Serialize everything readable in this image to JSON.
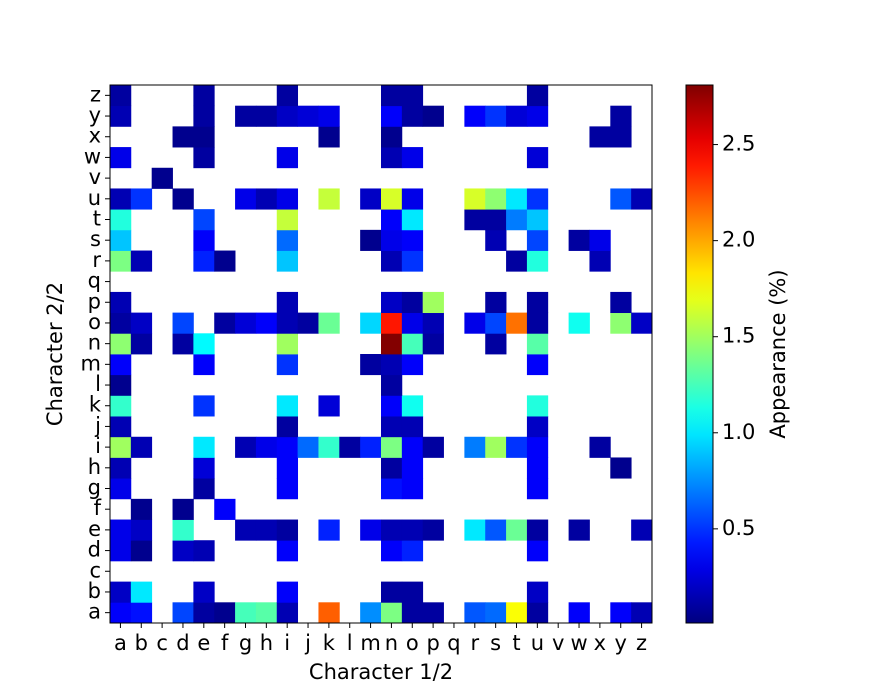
{
  "chart_data": {
    "type": "heatmap",
    "xlabel": "Character 1/2",
    "ylabel": "Character 2/2",
    "colorbar_label": "Appearance (%)",
    "colormap": "jet",
    "x": [
      "a",
      "b",
      "c",
      "d",
      "e",
      "f",
      "g",
      "h",
      "i",
      "j",
      "k",
      "l",
      "m",
      "n",
      "o",
      "p",
      "q",
      "r",
      "s",
      "t",
      "u",
      "v",
      "w",
      "x",
      "y",
      "z"
    ],
    "y": [
      "a",
      "b",
      "c",
      "d",
      "e",
      "f",
      "g",
      "h",
      "i",
      "j",
      "k",
      "l",
      "m",
      "n",
      "o",
      "p",
      "q",
      "r",
      "s",
      "t",
      "u",
      "v",
      "w",
      "x",
      "y",
      "z"
    ],
    "values": [
      [
        0.35,
        0.4,
        null,
        0.55,
        0.1,
        0.05,
        1.25,
        1.3,
        0.15,
        null,
        2.2,
        null,
        0.75,
        1.4,
        0.1,
        0.1,
        null,
        0.6,
        0.65,
        1.75,
        0.1,
        null,
        0.35,
        null,
        0.35,
        0.15
      ],
      [
        0.2,
        1.0,
        null,
        null,
        0.2,
        null,
        null,
        null,
        0.35,
        null,
        null,
        null,
        null,
        0.1,
        0.1,
        null,
        null,
        null,
        null,
        null,
        0.2,
        null,
        null,
        null,
        null,
        null
      ],
      [
        null,
        null,
        null,
        null,
        null,
        null,
        null,
        null,
        null,
        null,
        null,
        null,
        null,
        null,
        null,
        null,
        null,
        null,
        null,
        null,
        null,
        null,
        null,
        null,
        null,
        null
      ],
      [
        0.3,
        0.05,
        null,
        0.2,
        0.15,
        null,
        null,
        null,
        0.35,
        null,
        null,
        null,
        null,
        0.35,
        0.45,
        null,
        null,
        null,
        null,
        null,
        0.35,
        null,
        null,
        null,
        null,
        null
      ],
      [
        0.3,
        0.2,
        null,
        1.2,
        null,
        null,
        0.15,
        0.15,
        0.1,
        null,
        0.45,
        null,
        0.3,
        0.15,
        0.15,
        0.1,
        null,
        1.0,
        0.6,
        1.35,
        0.1,
        null,
        0.1,
        null,
        null,
        0.15
      ],
      [
        null,
        0.05,
        null,
        0.05,
        null,
        0.35,
        null,
        null,
        null,
        null,
        null,
        null,
        null,
        null,
        null,
        null,
        null,
        null,
        null,
        null,
        null,
        null,
        null,
        null,
        null,
        null
      ],
      [
        0.3,
        null,
        null,
        null,
        0.1,
        null,
        null,
        null,
        0.35,
        null,
        null,
        null,
        null,
        0.4,
        0.35,
        null,
        null,
        null,
        null,
        null,
        0.35,
        null,
        null,
        null,
        null,
        null
      ],
      [
        0.15,
        null,
        null,
        null,
        0.25,
        null,
        null,
        null,
        0.35,
        null,
        null,
        null,
        null,
        0.1,
        0.35,
        null,
        null,
        null,
        null,
        null,
        0.35,
        null,
        null,
        null,
        0.05,
        null
      ],
      [
        1.5,
        0.15,
        null,
        null,
        1.0,
        null,
        0.15,
        0.3,
        0.35,
        0.65,
        1.2,
        0.1,
        0.45,
        1.4,
        0.35,
        0.1,
        null,
        0.7,
        1.5,
        0.5,
        0.35,
        null,
        null,
        0.1,
        null,
        null
      ],
      [
        0.15,
        null,
        null,
        null,
        null,
        null,
        null,
        null,
        0.1,
        null,
        null,
        null,
        null,
        0.15,
        0.15,
        null,
        null,
        null,
        null,
        null,
        0.2,
        null,
        null,
        null,
        null,
        null
      ],
      [
        1.2,
        null,
        null,
        null,
        0.5,
        null,
        null,
        null,
        1.0,
        null,
        0.25,
        null,
        null,
        0.35,
        1.1,
        null,
        null,
        null,
        null,
        null,
        1.15,
        null,
        null,
        null,
        null,
        null
      ],
      [
        0.05,
        null,
        null,
        null,
        null,
        null,
        null,
        null,
        null,
        null,
        null,
        null,
        null,
        0.1,
        null,
        null,
        null,
        null,
        null,
        null,
        null,
        null,
        null,
        null,
        null,
        null
      ],
      [
        0.35,
        null,
        null,
        null,
        0.35,
        null,
        null,
        null,
        0.5,
        null,
        null,
        null,
        0.1,
        0.15,
        0.35,
        null,
        null,
        null,
        null,
        null,
        0.35,
        null,
        null,
        null,
        null,
        null
      ],
      [
        1.45,
        0.1,
        null,
        0.1,
        1.05,
        null,
        null,
        null,
        1.5,
        null,
        null,
        null,
        null,
        2.8,
        1.25,
        0.1,
        null,
        null,
        0.1,
        null,
        1.3,
        null,
        null,
        null,
        null,
        null
      ],
      [
        0.1,
        0.2,
        null,
        0.55,
        null,
        0.1,
        0.25,
        0.35,
        0.15,
        0.1,
        1.35,
        null,
        0.95,
        2.4,
        0.3,
        0.15,
        null,
        0.3,
        0.55,
        2.15,
        0.1,
        null,
        1.1,
        null,
        1.45,
        0.2
      ],
      [
        0.15,
        null,
        null,
        null,
        null,
        null,
        null,
        null,
        0.15,
        null,
        null,
        null,
        null,
        0.2,
        0.1,
        1.5,
        null,
        null,
        0.1,
        null,
        0.1,
        null,
        null,
        null,
        0.1,
        null
      ],
      [
        null,
        null,
        null,
        null,
        null,
        null,
        null,
        null,
        null,
        null,
        null,
        null,
        null,
        null,
        null,
        null,
        null,
        null,
        null,
        null,
        null,
        null,
        null,
        null,
        null,
        null
      ],
      [
        1.4,
        0.15,
        null,
        null,
        0.45,
        0.05,
        null,
        null,
        0.9,
        null,
        null,
        null,
        null,
        0.15,
        0.5,
        null,
        null,
        null,
        null,
        0.1,
        1.15,
        null,
        null,
        0.15,
        null,
        null
      ],
      [
        0.9,
        null,
        null,
        null,
        0.35,
        null,
        null,
        null,
        0.65,
        null,
        null,
        null,
        0.05,
        0.3,
        0.35,
        null,
        null,
        null,
        0.15,
        null,
        0.55,
        null,
        0.1,
        0.3,
        null,
        null
      ],
      [
        1.15,
        null,
        null,
        null,
        0.55,
        null,
        null,
        null,
        1.6,
        null,
        null,
        null,
        null,
        0.35,
        1.0,
        null,
        null,
        0.1,
        0.1,
        0.7,
        0.9,
        null,
        null,
        null,
        null,
        null
      ],
      [
        0.15,
        0.5,
        null,
        0.05,
        null,
        null,
        0.3,
        0.15,
        0.3,
        null,
        1.6,
        null,
        0.2,
        1.65,
        0.3,
        null,
        null,
        1.65,
        1.45,
        1.0,
        0.5,
        null,
        null,
        null,
        0.6,
        0.15
      ],
      [
        null,
        null,
        0.05,
        null,
        null,
        null,
        null,
        null,
        null,
        null,
        null,
        null,
        null,
        null,
        null,
        null,
        null,
        null,
        null,
        null,
        null,
        null,
        null,
        null,
        null,
        null
      ],
      [
        0.3,
        null,
        null,
        null,
        0.1,
        null,
        null,
        null,
        0.3,
        null,
        null,
        null,
        null,
        0.15,
        0.3,
        null,
        null,
        null,
        null,
        null,
        0.25,
        null,
        null,
        null,
        null,
        null
      ],
      [
        null,
        null,
        null,
        0.05,
        0.05,
        null,
        null,
        null,
        null,
        null,
        0.05,
        null,
        null,
        0.05,
        null,
        null,
        null,
        null,
        null,
        null,
        null,
        null,
        null,
        0.1,
        0.1,
        null
      ],
      [
        0.15,
        null,
        null,
        null,
        0.1,
        null,
        0.1,
        0.1,
        0.2,
        0.25,
        0.3,
        null,
        null,
        0.35,
        0.1,
        0.05,
        null,
        0.35,
        0.5,
        0.25,
        0.3,
        null,
        null,
        null,
        0.1,
        null
      ],
      [
        0.1,
        null,
        null,
        null,
        0.1,
        null,
        null,
        null,
        0.1,
        null,
        null,
        null,
        null,
        0.1,
        0.1,
        null,
        null,
        null,
        null,
        null,
        0.1,
        null,
        null,
        null,
        null,
        null
      ]
    ],
    "clim": [
      0.01,
      2.81
    ],
    "cticks": [
      0.5,
      {
        "value": 1,
        "label": "1.0"
      },
      1.5,
      {
        "value": 2,
        "label": "2.0"
      },
      2.5
    ]
  }
}
